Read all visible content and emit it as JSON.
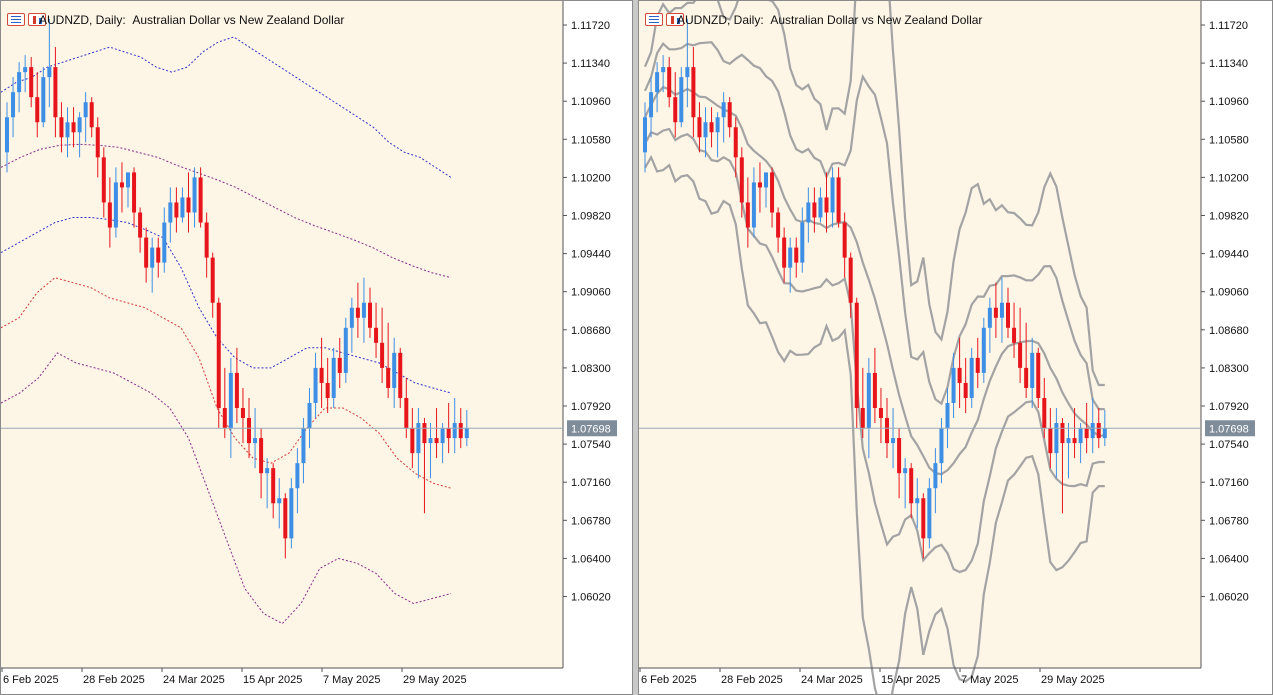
{
  "windows": [
    {
      "symbol": "AUDNZD, Daily:",
      "description": "Australian Dollar vs New Zealand Dollar",
      "indicator_style": "envelope-dashed"
    },
    {
      "symbol": "AUDNZD, Daily:",
      "description": "Australian Dollar vs New Zealand Dollar",
      "indicator_style": "bands-gray"
    }
  ],
  "current_price": "1.07698",
  "colors": {
    "background": "#fdf5e6",
    "bull": "#3d8fe6",
    "bear": "#e8141c",
    "current_line": "#9aa9b8",
    "price_tag": "#7f8c99",
    "band_gray": "#a3a3a3",
    "env_blue": "#3333cc",
    "env_red": "#d63a3a",
    "env_purple": "#8a2b8a"
  },
  "chart_data": {
    "type": "candlestick",
    "symbol": "AUDNZD",
    "timeframe": "Daily",
    "price_ticks": [
      "1.11720",
      "1.11340",
      "1.10960",
      "1.10580",
      "1.10200",
      "1.09820",
      "1.09440",
      "1.09060",
      "1.08680",
      "1.08300",
      "1.07920",
      "1.07540",
      "1.07160",
      "1.06780",
      "1.06400",
      "1.06020"
    ],
    "date_ticks": [
      "6 Feb 2025",
      "28 Feb 2025",
      "24 Mar 2025",
      "15 Apr 2025",
      "7 May 2025",
      "29 May 2025"
    ],
    "ylim": [
      1.056,
      1.1182
    ],
    "current_price": 1.07698,
    "candles": [
      [
        1.1045,
        1.1095,
        1.1025,
        1.108
      ],
      [
        1.108,
        1.112,
        1.106,
        1.1105
      ],
      [
        1.1105,
        1.1135,
        1.1085,
        1.1125
      ],
      [
        1.1125,
        1.1142,
        1.1105,
        1.113
      ],
      [
        1.113,
        1.114,
        1.109,
        1.11
      ],
      [
        1.11,
        1.1125,
        1.106,
        1.1075
      ],
      [
        1.1075,
        1.113,
        1.107,
        1.112
      ],
      [
        1.112,
        1.1178,
        1.109,
        1.113
      ],
      [
        1.113,
        1.115,
        1.106,
        1.108
      ],
      [
        1.108,
        1.1095,
        1.1045,
        1.106
      ],
      [
        1.106,
        1.109,
        1.104,
        1.1075
      ],
      [
        1.1075,
        1.109,
        1.105,
        1.1065
      ],
      [
        1.1065,
        1.1085,
        1.104,
        1.108
      ],
      [
        1.108,
        1.1105,
        1.1055,
        1.1095
      ],
      [
        1.1095,
        1.11,
        1.106,
        1.107
      ],
      [
        1.107,
        1.108,
        1.102,
        1.104
      ],
      [
        1.104,
        1.105,
        1.098,
        1.0995
      ],
      [
        1.0995,
        1.102,
        1.095,
        1.097
      ],
      [
        1.097,
        1.103,
        1.096,
        1.1015
      ],
      [
        1.1015,
        1.1035,
        1.0985,
        1.101
      ],
      [
        1.101,
        1.102,
        1.099,
        1.1025
      ],
      [
        1.1025,
        1.103,
        1.097,
        1.0985
      ],
      [
        1.0985,
        1.099,
        1.0945,
        1.096
      ],
      [
        1.096,
        1.097,
        1.0915,
        1.093
      ],
      [
        1.093,
        1.096,
        1.0905,
        1.095
      ],
      [
        1.095,
        1.096,
        1.092,
        1.0935
      ],
      [
        1.0935,
        1.099,
        1.0925,
        1.0975
      ],
      [
        1.0975,
        1.101,
        1.0955,
        1.0995
      ],
      [
        1.0995,
        1.101,
        1.0965,
        1.098
      ],
      [
        1.098,
        1.101,
        1.0975,
        1.1
      ],
      [
        1.1,
        1.1025,
        1.0965,
        1.0985
      ],
      [
        1.0985,
        1.103,
        1.097,
        1.102
      ],
      [
        1.102,
        1.103,
        1.097,
        1.0975
      ],
      [
        1.0975,
        1.0985,
        1.092,
        1.094
      ],
      [
        1.094,
        1.0945,
        1.088,
        1.0895
      ],
      [
        1.0895,
        1.09,
        1.077,
        1.079
      ],
      [
        1.079,
        1.083,
        1.076,
        1.077
      ],
      [
        1.077,
        1.084,
        1.074,
        1.0825
      ],
      [
        1.0825,
        1.085,
        1.0775,
        1.079
      ],
      [
        1.079,
        1.081,
        1.0755,
        1.078
      ],
      [
        1.078,
        1.08,
        1.074,
        1.0755
      ],
      [
        1.0755,
        1.079,
        1.073,
        1.076
      ],
      [
        1.076,
        1.077,
        1.07,
        1.0725
      ],
      [
        1.0725,
        1.074,
        1.069,
        1.073
      ],
      [
        1.073,
        1.0735,
        1.068,
        1.0695
      ],
      [
        1.0695,
        1.072,
        1.067,
        1.07
      ],
      [
        1.07,
        1.0705,
        1.064,
        1.066
      ],
      [
        1.066,
        1.072,
        1.065,
        1.071
      ],
      [
        1.071,
        1.075,
        1.0685,
        1.0735
      ],
      [
        1.0735,
        1.078,
        1.0715,
        1.077
      ],
      [
        1.077,
        1.081,
        1.075,
        1.0795
      ],
      [
        1.0795,
        1.0845,
        1.078,
        1.083
      ],
      [
        1.083,
        1.086,
        1.079,
        1.0815
      ],
      [
        1.0815,
        1.084,
        1.0785,
        1.08
      ],
      [
        1.08,
        1.085,
        1.079,
        1.084
      ],
      [
        1.084,
        1.086,
        1.081,
        1.0825
      ],
      [
        1.0825,
        1.088,
        1.0815,
        1.087
      ],
      [
        1.087,
        1.09,
        1.0845,
        1.089
      ],
      [
        1.089,
        1.0915,
        1.086,
        1.088
      ],
      [
        1.088,
        1.092,
        1.0855,
        1.0895
      ],
      [
        1.0895,
        1.091,
        1.086,
        1.087
      ],
      [
        1.087,
        1.0895,
        1.084,
        1.0855
      ],
      [
        1.0855,
        1.089,
        1.0815,
        1.083
      ],
      [
        1.083,
        1.0875,
        1.08,
        1.081
      ],
      [
        1.081,
        1.086,
        1.079,
        1.0845
      ],
      [
        1.0845,
        1.085,
        1.079,
        1.08
      ],
      [
        1.08,
        1.082,
        1.076,
        1.077
      ],
      [
        1.077,
        1.079,
        1.073,
        1.0745
      ],
      [
        1.0745,
        1.079,
        1.072,
        1.0775
      ],
      [
        1.0775,
        1.078,
        1.0685,
        1.0755
      ],
      [
        1.0755,
        1.0775,
        1.072,
        1.076
      ],
      [
        1.076,
        1.079,
        1.074,
        1.0755
      ],
      [
        1.0755,
        1.0775,
        1.0735,
        1.077
      ],
      [
        1.077,
        1.0795,
        1.0745,
        1.076
      ],
      [
        1.076,
        1.08,
        1.0745,
        1.0775
      ],
      [
        1.0775,
        1.079,
        1.075,
        1.076
      ],
      [
        1.076,
        1.0788,
        1.0752,
        1.077
      ]
    ],
    "envelope_lines": [
      {
        "color": "#3333cc",
        "values": [
          1.1105,
          1.1115,
          1.112,
          1.113,
          1.1135,
          1.114,
          1.1145,
          1.115,
          1.1145,
          1.114,
          1.113,
          1.1125,
          1.113,
          1.1145,
          1.1155,
          1.116,
          1.115,
          1.114,
          1.113,
          1.112,
          1.111,
          1.11,
          1.109,
          1.108,
          1.107,
          1.1055,
          1.1045,
          1.104,
          1.103,
          1.102
        ]
      },
      {
        "color": "#8a2b8a",
        "values": [
          1.103,
          1.104,
          1.1048,
          1.1052,
          1.1053,
          1.1052,
          1.105,
          1.1045,
          1.104,
          1.1032,
          1.1025,
          1.1018,
          1.101,
          1.1,
          1.099,
          1.098,
          1.0972,
          1.0965,
          1.0958,
          1.095,
          1.094,
          1.0932,
          1.0925,
          1.092
        ]
      },
      {
        "color": "#3333cc",
        "values": [
          1.0945,
          1.0955,
          1.0965,
          1.0975,
          1.098,
          1.098,
          1.0978,
          1.0975,
          1.0968,
          1.096,
          1.093,
          1.089,
          1.086,
          1.084,
          1.083,
          1.083,
          1.084,
          1.085,
          1.085,
          1.0845,
          1.084,
          1.0835,
          1.0825,
          1.0815,
          1.081,
          1.0805
        ]
      },
      {
        "color": "#d63a3a",
        "values": [
          1.087,
          1.088,
          1.0905,
          1.092,
          1.0915,
          1.091,
          1.09,
          1.0895,
          1.089,
          1.088,
          1.087,
          1.084,
          1.079,
          1.076,
          1.074,
          1.0735,
          1.0745,
          1.077,
          1.079,
          1.079,
          1.078,
          1.0765,
          1.074,
          1.0725,
          1.0715,
          1.071
        ]
      },
      {
        "color": "#8a2b8a",
        "values": [
          1.0795,
          1.0805,
          1.082,
          1.0845,
          1.0835,
          1.083,
          1.0825,
          1.0815,
          1.0805,
          1.079,
          1.076,
          1.071,
          1.066,
          1.061,
          1.0585,
          1.0575,
          1.0595,
          1.063,
          1.064,
          1.0635,
          1.0625,
          1.0605,
          1.0595,
          1.06,
          1.0605
        ]
      }
    ]
  }
}
